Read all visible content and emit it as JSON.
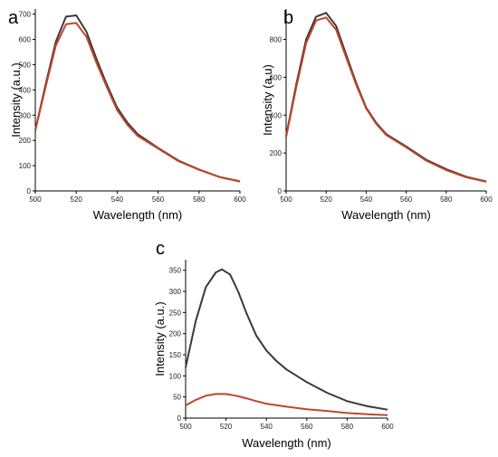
{
  "chart_data": [
    {
      "panel": "a",
      "type": "line",
      "xlabel": "Wavelength (nm)",
      "ylabel": "Intensity (a.u.)",
      "xlim": [
        500,
        600
      ],
      "ylim": [
        0,
        720
      ],
      "xticks": [
        500,
        520,
        540,
        560,
        580,
        600
      ],
      "yticks": [
        0,
        100,
        200,
        300,
        400,
        500,
        600,
        700
      ],
      "grid": false,
      "series": [
        {
          "color": "#3a3a3a",
          "x": [
            500,
            505,
            510,
            515,
            520,
            525,
            530,
            535,
            540,
            545,
            550,
            560,
            570,
            580,
            590,
            600
          ],
          "y": [
            240,
            420,
            590,
            690,
            695,
            630,
            520,
            420,
            330,
            270,
            225,
            170,
            120,
            85,
            55,
            38
          ]
        },
        {
          "color": "#c0452b",
          "x": [
            500,
            505,
            510,
            515,
            520,
            525,
            530,
            535,
            540,
            545,
            550,
            560,
            570,
            580,
            590,
            600
          ],
          "y": [
            240,
            410,
            575,
            660,
            665,
            610,
            505,
            410,
            320,
            262,
            218,
            168,
            118,
            84,
            55,
            37
          ]
        }
      ]
    },
    {
      "panel": "b",
      "type": "line",
      "xlabel": "Wavelength (nm)",
      "ylabel": "Intensity (a.u)",
      "xlim": [
        500,
        600
      ],
      "ylim": [
        0,
        960
      ],
      "xticks": [
        500,
        520,
        540,
        560,
        580,
        600
      ],
      "yticks": [
        0,
        200,
        400,
        600,
        800
      ],
      "grid": false,
      "series": [
        {
          "color": "#3a3a3a",
          "x": [
            500,
            505,
            510,
            515,
            520,
            525,
            530,
            535,
            540,
            545,
            550,
            560,
            570,
            580,
            590,
            600
          ],
          "y": [
            290,
            560,
            800,
            920,
            940,
            870,
            720,
            570,
            440,
            360,
            300,
            235,
            165,
            115,
            75,
            50
          ]
        },
        {
          "color": "#c0452b",
          "x": [
            500,
            505,
            510,
            515,
            520,
            525,
            530,
            535,
            540,
            545,
            550,
            560,
            570,
            580,
            590,
            600
          ],
          "y": [
            285,
            545,
            780,
            900,
            915,
            850,
            705,
            560,
            435,
            355,
            295,
            230,
            160,
            110,
            72,
            48
          ]
        }
      ]
    },
    {
      "panel": "c",
      "type": "line",
      "xlabel": "Wavelength (nm)",
      "ylabel": "Intensity (a.u.)",
      "xlim": [
        500,
        600
      ],
      "ylim": [
        0,
        375
      ],
      "xticks": [
        500,
        520,
        540,
        560,
        580,
        600
      ],
      "yticks": [
        0,
        50,
        100,
        150,
        200,
        250,
        300,
        350
      ],
      "grid": false,
      "series": [
        {
          "color": "#3a3a3a",
          "x": [
            500,
            505,
            510,
            515,
            518,
            522,
            526,
            530,
            535,
            540,
            545,
            550,
            560,
            570,
            580,
            590,
            600
          ],
          "y": [
            120,
            230,
            310,
            345,
            352,
            340,
            300,
            250,
            195,
            160,
            135,
            115,
            85,
            60,
            40,
            28,
            20
          ]
        },
        {
          "color": "#c0452b",
          "x": [
            500,
            505,
            510,
            515,
            520,
            525,
            530,
            535,
            540,
            550,
            560,
            570,
            580,
            590,
            600
          ],
          "y": [
            30,
            43,
            53,
            57,
            57,
            53,
            47,
            40,
            34,
            27,
            21,
            17,
            12,
            9,
            7
          ]
        }
      ]
    }
  ]
}
